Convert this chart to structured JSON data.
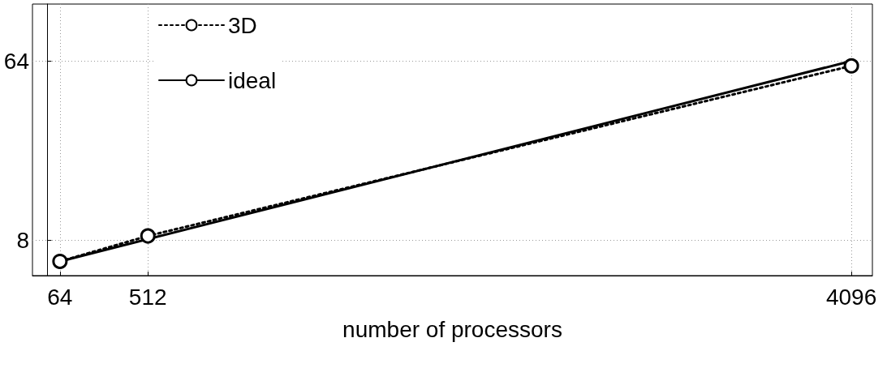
{
  "chart_data": {
    "type": "line",
    "xlabel": "number of processors",
    "xlim": [
      -76,
      4203
    ],
    "xticks": [
      64,
      512,
      4096
    ],
    "ylim": [
      5.3,
      124
    ],
    "yticks": [
      8,
      64
    ],
    "log": "y",
    "grid": true,
    "legend": "top left",
    "series": [
      {
        "name": "3D",
        "color": "#000000",
        "x": [
          64,
          512,
          4096
        ],
        "values": [
          6.25,
          8.4,
          60.5
        ],
        "marker": "circle",
        "line_style": "dotted"
      },
      {
        "name": "ideal",
        "color": "#000000",
        "x": [
          64,
          4096
        ],
        "values": [
          6.25,
          64
        ],
        "marker": "none",
        "line_style": "solid"
      }
    ]
  }
}
